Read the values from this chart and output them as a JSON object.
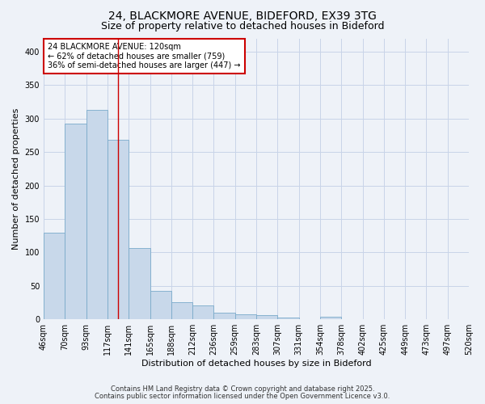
{
  "title": "24, BLACKMORE AVENUE, BIDEFORD, EX39 3TG",
  "subtitle": "Size of property relative to detached houses in Bideford",
  "xlabel": "Distribution of detached houses by size in Bideford",
  "ylabel": "Number of detached properties",
  "bar_values": [
    130,
    292,
    313,
    268,
    107,
    43,
    26,
    21,
    10,
    8,
    6,
    3,
    0,
    4,
    0,
    0,
    0,
    0,
    0,
    0
  ],
  "xtick_labels": [
    "46sqm",
    "70sqm",
    "93sqm",
    "117sqm",
    "141sqm",
    "165sqm",
    "188sqm",
    "212sqm",
    "236sqm",
    "259sqm",
    "283sqm",
    "307sqm",
    "331sqm",
    "354sqm",
    "378sqm",
    "402sqm",
    "425sqm",
    "449sqm",
    "473sqm",
    "497sqm",
    "520sqm"
  ],
  "bar_color": "#c8d8ea",
  "bar_edge_color": "#7aaaca",
  "vline_x": 3.5,
  "vline_color": "#cc0000",
  "annotation_title": "24 BLACKMORE AVENUE: 120sqm",
  "annotation_line2": "← 62% of detached houses are smaller (759)",
  "annotation_line3": "36% of semi-detached houses are larger (447) →",
  "annotation_box_color": "white",
  "annotation_box_edge_color": "#cc0000",
  "ylim": [
    0,
    420
  ],
  "yticks": [
    0,
    50,
    100,
    150,
    200,
    250,
    300,
    350,
    400
  ],
  "grid_color": "#c8d4e8",
  "bg_color": "#eef2f8",
  "footer1": "Contains HM Land Registry data © Crown copyright and database right 2025.",
  "footer2": "Contains public sector information licensed under the Open Government Licence v3.0.",
  "title_fontsize": 10,
  "subtitle_fontsize": 9,
  "axis_label_fontsize": 8,
  "tick_fontsize": 7,
  "annot_fontsize": 7,
  "footer_fontsize": 6
}
